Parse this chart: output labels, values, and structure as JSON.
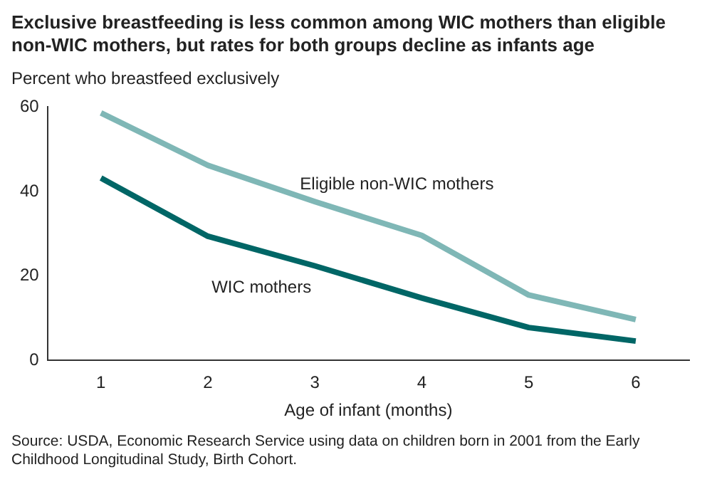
{
  "chart_data": {
    "type": "line",
    "title": "Exclusive breastfeeding is less common among WIC mothers than eligible non-WIC mothers, but rates for both groups decline as infants age",
    "ylabel": "Percent who breastfeed exclusively",
    "xlabel": "Age of infant (months)",
    "x": [
      1,
      2,
      3,
      4,
      5,
      6
    ],
    "xlim": [
      0.5,
      6.5
    ],
    "xticks": [
      1,
      2,
      3,
      4,
      5,
      6
    ],
    "ylim": [
      0,
      60
    ],
    "yticks": [
      0,
      20,
      40,
      60
    ],
    "grid": false,
    "legend": false,
    "marker": "none",
    "line_style": "solid",
    "series": [
      {
        "name": "Eligible non-WIC mothers",
        "color": "#7fb7b6",
        "values": [
          58.6,
          46.2,
          37.6,
          29.6,
          15.5,
          9.7
        ]
      },
      {
        "name": "WIC mothers",
        "color": "#006666",
        "values": [
          43.2,
          29.4,
          22.4,
          14.8,
          7.8,
          4.6
        ]
      }
    ],
    "annotations": [
      "Source:  USDA, Economic Research Service using data on children born in 2001 from the Early Childhood Longitudinal Study, Birth Cohort."
    ]
  }
}
